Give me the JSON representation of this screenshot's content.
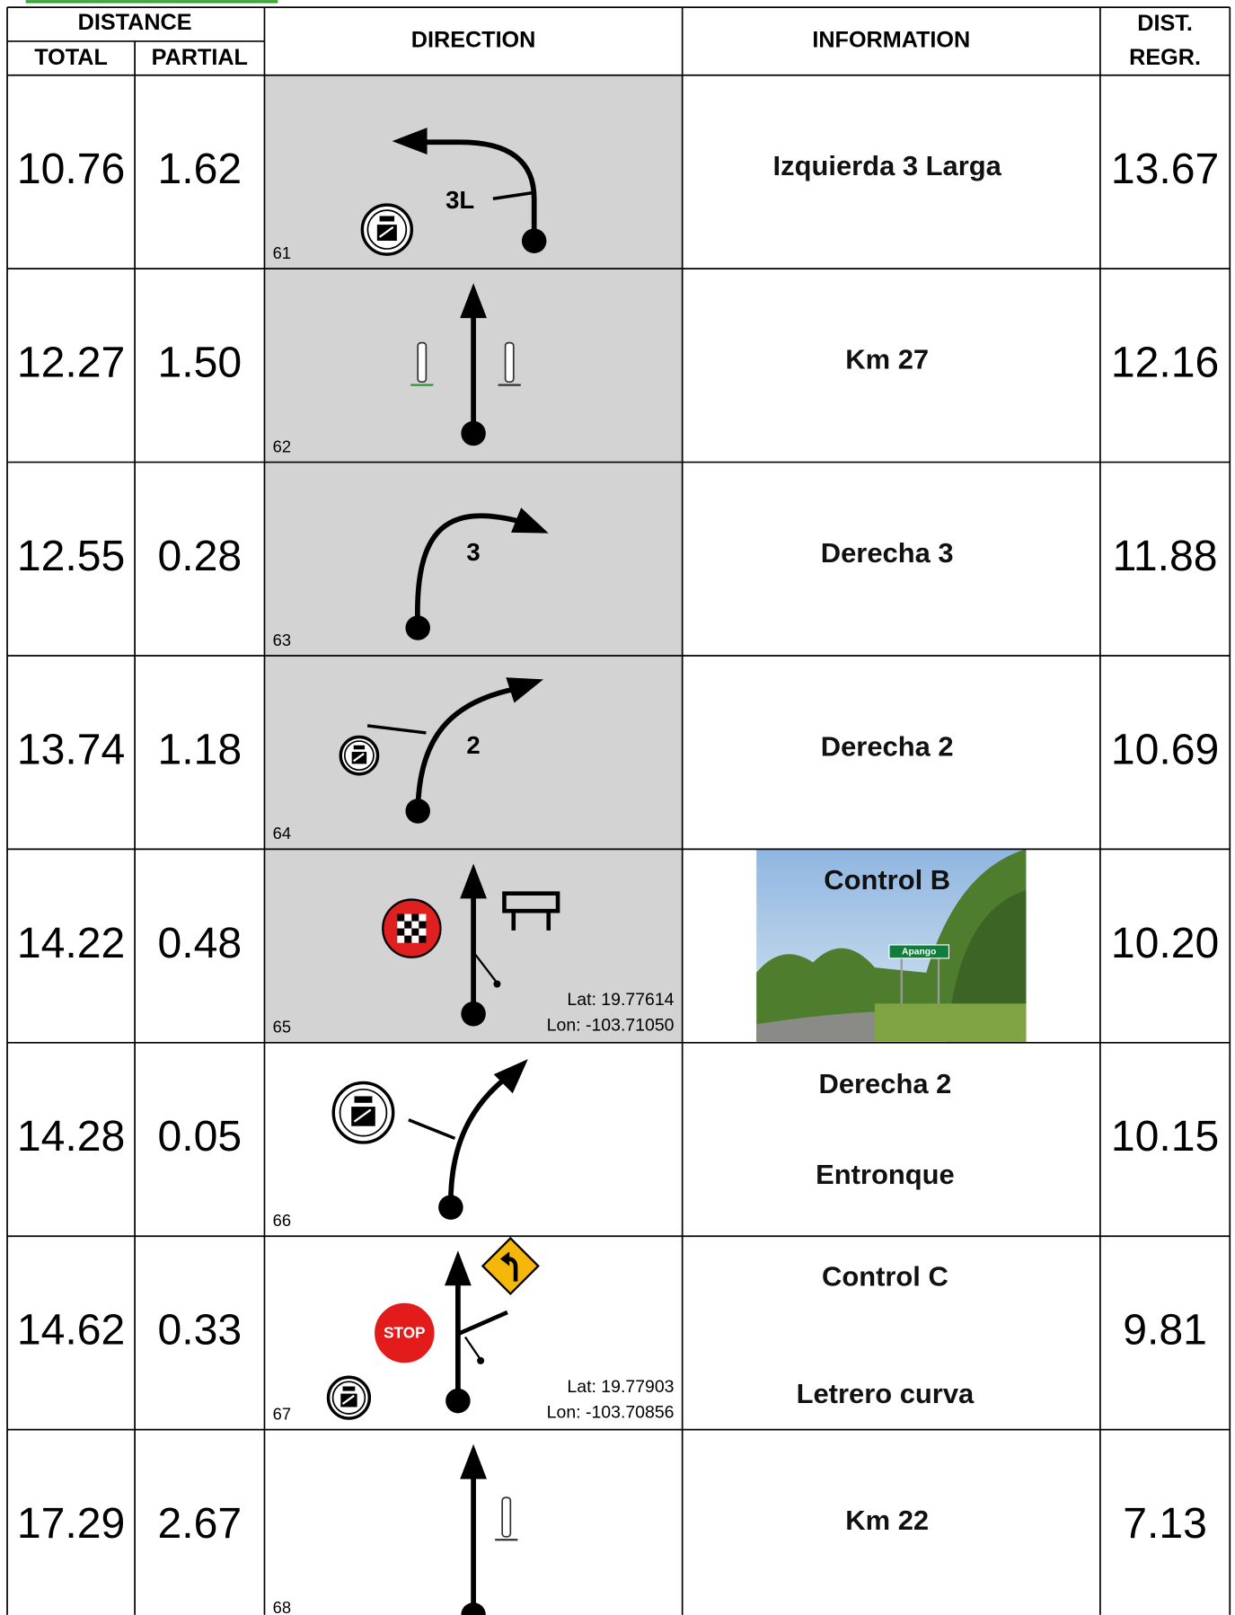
{
  "header": {
    "distance": "DISTANCE",
    "total": "TOTAL",
    "partial": "PARTIAL",
    "direction": "DIRECTION",
    "information": "INFORMATION",
    "dist_regr": [
      "DIST.",
      "REGR."
    ]
  },
  "rows": [
    {
      "total": "10.76",
      "partial": "1.62",
      "number": "61",
      "diagram_label": "3L",
      "information": [
        "Izquierda 3 Larga"
      ],
      "dist_regr": "13.67"
    },
    {
      "total": "12.27",
      "partial": "1.50",
      "number": "62",
      "information": [
        "Km 27"
      ],
      "dist_regr": "12.16"
    },
    {
      "total": "12.55",
      "partial": "0.28",
      "number": "63",
      "diagram_label": "3",
      "information": [
        "Derecha 3"
      ],
      "dist_regr": "11.88"
    },
    {
      "total": "13.74",
      "partial": "1.18",
      "number": "64",
      "diagram_label": "2",
      "information": [
        "Derecha 2"
      ],
      "dist_regr": "10.69"
    },
    {
      "total": "14.22",
      "partial": "0.48",
      "number": "65",
      "coordinates": [
        "Lat: 19.77614",
        "Lon: -103.71050"
      ],
      "photo_title": "Control B",
      "photo_sign": "Apango",
      "dist_regr": "10.20"
    },
    {
      "total": "14.28",
      "partial": "0.05",
      "number": "66",
      "information": [
        "Derecha 2",
        "Entronque"
      ],
      "dist_regr": "10.15"
    },
    {
      "total": "14.62",
      "partial": "0.33",
      "number": "67",
      "coordinates": [
        "Lat: 19.77903",
        "Lon: -103.70856"
      ],
      "sign": "STOP",
      "information": [
        "Control C",
        "Letrero  curva"
      ],
      "dist_regr": "9.81"
    },
    {
      "total": "17.29",
      "partial": "2.67",
      "number": "68",
      "information": [
        "Km 22"
      ],
      "dist_regr": "7.13"
    }
  ]
}
